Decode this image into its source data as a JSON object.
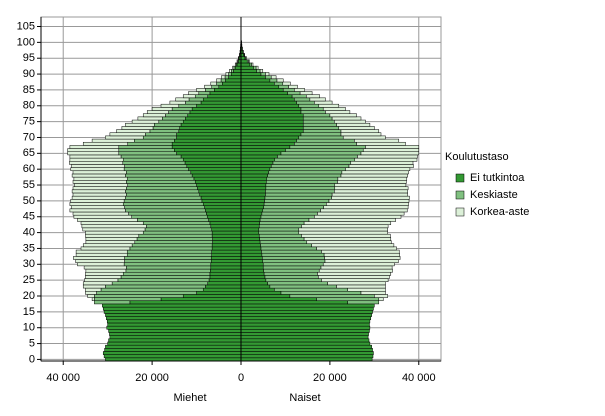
{
  "chart_data": {
    "type": "population-pyramid",
    "legend_title": "Koulutustaso",
    "side_labels": [
      "Miehet",
      "Naiset"
    ],
    "categories": [
      0,
      1,
      2,
      3,
      4,
      5,
      6,
      7,
      8,
      9,
      10,
      11,
      12,
      13,
      14,
      15,
      16,
      17,
      18,
      19,
      20,
      21,
      22,
      23,
      24,
      25,
      26,
      27,
      28,
      29,
      30,
      31,
      32,
      33,
      34,
      35,
      36,
      37,
      38,
      39,
      40,
      41,
      42,
      43,
      44,
      45,
      46,
      47,
      48,
      49,
      50,
      51,
      52,
      53,
      54,
      55,
      56,
      57,
      58,
      59,
      60,
      61,
      62,
      63,
      64,
      65,
      66,
      67,
      68,
      69,
      70,
      71,
      72,
      73,
      74,
      75,
      76,
      77,
      78,
      79,
      80,
      81,
      82,
      83,
      84,
      85,
      86,
      87,
      88,
      89,
      90,
      91,
      92,
      93,
      94,
      95,
      96,
      97,
      98,
      99,
      100
    ],
    "series": [
      {
        "name": "Ei tutkintoa",
        "color": "#339933",
        "men": [
          30500,
          30800,
          31000,
          30700,
          30500,
          30000,
          29800,
          29500,
          29600,
          29800,
          30200,
          30000,
          30100,
          30300,
          30500,
          30800,
          31000,
          31200,
          25000,
          18000,
          13000,
          10000,
          8500,
          8000,
          7500,
          7200,
          7000,
          7000,
          6900,
          6800,
          6800,
          6700,
          6700,
          6600,
          6600,
          6500,
          6500,
          6400,
          6400,
          6500,
          6500,
          6600,
          6800,
          7000,
          7300,
          7600,
          7800,
          8000,
          8200,
          8500,
          8800,
          9000,
          9300,
          9500,
          9800,
          10000,
          10300,
          10600,
          11000,
          11300,
          11800,
          12200,
          12600,
          13000,
          13500,
          14500,
          15000,
          15500,
          15500,
          15000,
          14500,
          14500,
          14000,
          13800,
          13500,
          13000,
          12500,
          12000,
          11500,
          11000,
          10000,
          9000,
          8500,
          7500,
          7000,
          6000,
          5000,
          4200,
          3500,
          2800,
          2200,
          1700,
          1300,
          900,
          600,
          400,
          250,
          150,
          100,
          60,
          40
        ],
        "women": [
          29500,
          29700,
          29800,
          29600,
          29400,
          29000,
          28800,
          28600,
          28700,
          28900,
          29000,
          28900,
          29000,
          29200,
          29400,
          29600,
          29800,
          30000,
          24000,
          17000,
          11000,
          9000,
          7500,
          6500,
          6000,
          5600,
          5400,
          5200,
          5100,
          5000,
          5000,
          4900,
          4800,
          4700,
          4600,
          4500,
          4400,
          4300,
          4200,
          4100,
          4000,
          4000,
          4100,
          4200,
          4300,
          4500,
          4700,
          4900,
          5100,
          5200,
          5300,
          5400,
          5500,
          5500,
          5600,
          5600,
          5700,
          5800,
          6000,
          6200,
          6500,
          6800,
          7200,
          7600,
          8200,
          9000,
          10000,
          11000,
          12000,
          12500,
          13000,
          13500,
          14000,
          14000,
          14000,
          14000,
          14000,
          14000,
          13500,
          13500,
          13000,
          12500,
          12000,
          11500,
          10500,
          9500,
          8500,
          7500,
          6500,
          5500,
          4500,
          3500,
          2800,
          2000,
          1400,
          900,
          600,
          400,
          250,
          150,
          100
        ]
      },
      {
        "name": "Keskiaste",
        "color": "#80c080",
        "men": [
          0,
          0,
          0,
          0,
          0,
          0,
          0,
          0,
          0,
          0,
          0,
          0,
          0,
          0,
          0,
          0,
          0,
          0,
          8000,
          15000,
          20000,
          22500,
          23000,
          22500,
          21500,
          20500,
          20000,
          19500,
          19000,
          19000,
          19500,
          19500,
          19500,
          19000,
          19000,
          18500,
          18000,
          17500,
          17000,
          16500,
          15500,
          15000,
          14500,
          15000,
          16000,
          17000,
          17500,
          18000,
          18000,
          18000,
          17500,
          17000,
          16500,
          16500,
          16000,
          15500,
          15500,
          15000,
          15000,
          14500,
          14500,
          14000,
          14000,
          13500,
          13500,
          13000,
          12500,
          12000,
          10000,
          9000,
          7500,
          7000,
          6500,
          6000,
          6000,
          5500,
          5200,
          5000,
          4800,
          4500,
          4000,
          3500,
          3200,
          2800,
          2500,
          2000,
          1600,
          1300,
          1000,
          800,
          600,
          450,
          300,
          200,
          150,
          100,
          60,
          40,
          20,
          15,
          10
        ],
        "women": [
          0,
          0,
          0,
          0,
          0,
          0,
          0,
          0,
          0,
          0,
          0,
          0,
          0,
          0,
          0,
          0,
          0,
          0,
          7000,
          14000,
          19000,
          18000,
          16500,
          15000,
          13500,
          12500,
          12000,
          12000,
          12500,
          13000,
          13500,
          14000,
          14000,
          14000,
          13500,
          12500,
          11500,
          10500,
          10000,
          9500,
          9000,
          9000,
          9500,
          10000,
          11000,
          12000,
          12500,
          13000,
          13500,
          14000,
          14500,
          15000,
          15000,
          15500,
          15500,
          15500,
          16000,
          16000,
          16500,
          16500,
          17000,
          17500,
          17500,
          18000,
          18000,
          18000,
          17500,
          17000,
          14000,
          13000,
          10000,
          9000,
          8500,
          8000,
          7500,
          7000,
          6500,
          6000,
          5500,
          5000,
          4500,
          4000,
          3500,
          3200,
          2800,
          2500,
          2200,
          1900,
          1600,
          1300,
          1000,
          800,
          600,
          400,
          300,
          200,
          130,
          90,
          50,
          30,
          20
        ]
      },
      {
        "name": "Korkea-aste",
        "color": "#dcf0d8",
        "men": [
          0,
          0,
          0,
          0,
          0,
          0,
          0,
          0,
          0,
          0,
          0,
          0,
          0,
          0,
          0,
          0,
          0,
          0,
          0,
          500,
          1500,
          2500,
          3500,
          5000,
          6500,
          7500,
          8000,
          8500,
          9000,
          9500,
          10500,
          11000,
          11500,
          11500,
          11500,
          11000,
          11000,
          11000,
          11500,
          12000,
          13000,
          14000,
          14500,
          14000,
          13500,
          13000,
          12500,
          12500,
          12000,
          12000,
          12000,
          12000,
          12000,
          12000,
          12000,
          12000,
          12000,
          12000,
          12000,
          12000,
          12000,
          12000,
          12000,
          12000,
          11500,
          11500,
          11500,
          11000,
          10000,
          9500,
          8500,
          8000,
          7500,
          7000,
          6500,
          6000,
          5500,
          5000,
          4800,
          4500,
          4000,
          3500,
          3000,
          2700,
          2300,
          2000,
          1600,
          1300,
          1000,
          800,
          600,
          450,
          300,
          200,
          150,
          100,
          60,
          40,
          20,
          15,
          10
        ],
        "women": [
          0,
          0,
          0,
          0,
          0,
          0,
          0,
          0,
          0,
          0,
          0,
          0,
          0,
          0,
          0,
          0,
          0,
          0,
          0,
          1000,
          3000,
          5500,
          8500,
          11000,
          13000,
          15000,
          16000,
          16500,
          16500,
          16000,
          16000,
          16500,
          17000,
          17000,
          17500,
          18000,
          18500,
          19000,
          19500,
          20000,
          20000,
          20000,
          19500,
          19500,
          19500,
          19500,
          19500,
          19500,
          19000,
          18500,
          18000,
          17500,
          17000,
          16500,
          16500,
          16000,
          15500,
          15500,
          15000,
          15000,
          14500,
          14500,
          14000,
          14000,
          13500,
          13000,
          12500,
          12000,
          11000,
          10000,
          9500,
          9000,
          8500,
          8000,
          7500,
          7000,
          6500,
          6000,
          5500,
          5000,
          4500,
          4000,
          3500,
          3000,
          2700,
          2300,
          2000,
          1700,
          1400,
          1100,
          800,
          600,
          450,
          300,
          200,
          140,
          90,
          60,
          35,
          20,
          15
        ]
      }
    ],
    "xlim": [
      -45000,
      45000
    ],
    "xticks": [
      {
        "value": -40000,
        "label": "40 000"
      },
      {
        "value": -20000,
        "label": "20 000"
      },
      0,
      {
        "value": 20000,
        "label": "20 000"
      },
      {
        "value": 40000,
        "label": "40 000"
      }
    ],
    "ylim": [
      -0.5,
      108
    ],
    "yticks": [
      0,
      5,
      10,
      15,
      20,
      25,
      30,
      35,
      40,
      45,
      50,
      55,
      60,
      65,
      70,
      75,
      80,
      85,
      90,
      95,
      100,
      105
    ],
    "grid": true
  }
}
